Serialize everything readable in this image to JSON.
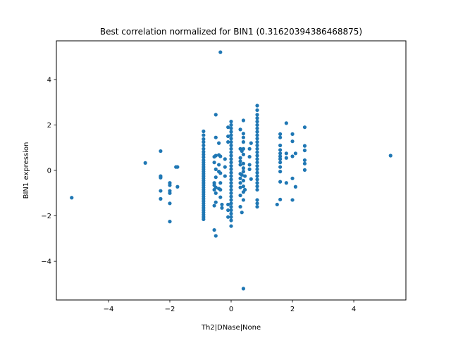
{
  "chart_data": {
    "type": "scatter",
    "title": "Best correlation normalized for BIN1 (0.31620394386468875)",
    "xlabel": "Th2|DNase|None",
    "ylabel": "BIN1 expression",
    "xlim": [
      -5.7,
      5.7
    ],
    "ylim": [
      -5.7,
      5.7
    ],
    "xticks": [
      -4,
      -2,
      0,
      2,
      4
    ],
    "yticks": [
      -4,
      -2,
      0,
      2,
      4
    ],
    "grid": false,
    "marker_color": "#1f77b4",
    "points": [
      [
        -5.2,
        -1.2
      ],
      [
        -2.8,
        0.33
      ],
      [
        5.2,
        0.65
      ],
      [
        -2.3,
        0.85
      ],
      [
        -2.3,
        -0.25
      ],
      [
        -2.3,
        -0.32
      ],
      [
        -2.3,
        -0.9
      ],
      [
        -2.3,
        -1.25
      ],
      [
        -2.0,
        -0.55
      ],
      [
        -2.0,
        -0.65
      ],
      [
        -2.0,
        -0.9
      ],
      [
        -2.0,
        -1.0
      ],
      [
        -2.0,
        -1.45
      ],
      [
        -2.0,
        -2.25
      ],
      [
        -1.8,
        0.15
      ],
      [
        -1.75,
        0.15
      ],
      [
        -1.75,
        -0.72
      ],
      [
        -0.9,
        1.72
      ],
      [
        -0.9,
        1.55
      ],
      [
        -0.9,
        1.38
      ],
      [
        -0.9,
        1.25
      ],
      [
        -0.9,
        1.1
      ],
      [
        -0.9,
        0.95
      ],
      [
        -0.9,
        0.82
      ],
      [
        -0.9,
        0.7
      ],
      [
        -0.9,
        0.58
      ],
      [
        -0.9,
        0.45
      ],
      [
        -0.9,
        0.35
      ],
      [
        -0.9,
        0.25
      ],
      [
        -0.9,
        0.15
      ],
      [
        -0.9,
        0.05
      ],
      [
        -0.9,
        -0.05
      ],
      [
        -0.9,
        -0.15
      ],
      [
        -0.9,
        -0.25
      ],
      [
        -0.9,
        -0.35
      ],
      [
        -0.9,
        -0.45
      ],
      [
        -0.9,
        -0.55
      ],
      [
        -0.9,
        -0.65
      ],
      [
        -0.9,
        -0.75
      ],
      [
        -0.9,
        -0.85
      ],
      [
        -0.9,
        -0.95
      ],
      [
        -0.9,
        -1.05
      ],
      [
        -0.9,
        -1.15
      ],
      [
        -0.9,
        -1.25
      ],
      [
        -0.9,
        -1.35
      ],
      [
        -0.9,
        -1.45
      ],
      [
        -0.9,
        -1.55
      ],
      [
        -0.9,
        -1.65
      ],
      [
        -0.9,
        -1.75
      ],
      [
        -0.9,
        -1.85
      ],
      [
        -0.9,
        -1.95
      ],
      [
        -0.9,
        -2.05
      ],
      [
        -0.9,
        -2.15
      ],
      [
        -0.55,
        0.6
      ],
      [
        -0.55,
        0.35
      ],
      [
        -0.55,
        -0.55
      ],
      [
        -0.55,
        -0.65
      ],
      [
        -0.55,
        -0.85
      ],
      [
        -0.55,
        -1.55
      ],
      [
        -0.55,
        -2.62
      ],
      [
        -0.5,
        2.45
      ],
      [
        -0.5,
        1.45
      ],
      [
        -0.5,
        0.65
      ],
      [
        -0.5,
        0.05
      ],
      [
        -0.5,
        -0.3
      ],
      [
        -0.5,
        -0.75
      ],
      [
        -0.5,
        -1.0
      ],
      [
        -0.5,
        -1.4
      ],
      [
        -0.5,
        -2.88
      ],
      [
        -0.35,
        5.2
      ],
      [
        -0.4,
        1.2
      ],
      [
        -0.4,
        0.68
      ],
      [
        -0.4,
        0.25
      ],
      [
        -0.4,
        -0.05
      ],
      [
        -0.4,
        -0.8
      ],
      [
        -0.35,
        0.62
      ],
      [
        -0.35,
        -0.12
      ],
      [
        -0.35,
        -0.55
      ],
      [
        -0.35,
        -0.85
      ],
      [
        -0.35,
        -1.18
      ],
      [
        -0.3,
        -1.5
      ],
      [
        -0.3,
        -1.65
      ],
      [
        -0.1,
        1.9
      ],
      [
        -0.1,
        1.5
      ],
      [
        -0.1,
        1.25
      ],
      [
        -0.1,
        -1.5
      ],
      [
        -0.1,
        -1.75
      ],
      [
        -0.1,
        -2.05
      ],
      [
        -0.2,
        0.5
      ],
      [
        -0.2,
        0.15
      ],
      [
        -0.2,
        -0.25
      ],
      [
        0.0,
        2.15
      ],
      [
        0.0,
        2.0
      ],
      [
        0.0,
        1.85
      ],
      [
        0.0,
        1.7
      ],
      [
        0.0,
        1.55
      ],
      [
        0.0,
        1.4
      ],
      [
        0.0,
        1.25
      ],
      [
        0.0,
        1.1
      ],
      [
        0.0,
        0.95
      ],
      [
        0.0,
        0.8
      ],
      [
        0.0,
        0.65
      ],
      [
        0.0,
        0.5
      ],
      [
        0.0,
        0.35
      ],
      [
        0.0,
        0.2
      ],
      [
        0.0,
        0.05
      ],
      [
        0.0,
        -0.1
      ],
      [
        0.0,
        -0.25
      ],
      [
        0.0,
        -0.4
      ],
      [
        0.0,
        -0.55
      ],
      [
        0.0,
        -0.7
      ],
      [
        0.0,
        -0.85
      ],
      [
        0.0,
        -1.0
      ],
      [
        0.0,
        -1.15
      ],
      [
        0.0,
        -1.3
      ],
      [
        0.0,
        -1.45
      ],
      [
        0.0,
        -1.6
      ],
      [
        0.0,
        -1.75
      ],
      [
        0.0,
        -1.9
      ],
      [
        0.0,
        -2.05
      ],
      [
        0.0,
        -2.2
      ],
      [
        0.0,
        -2.45
      ],
      [
        0.3,
        1.8
      ],
      [
        0.3,
        0.95
      ],
      [
        0.3,
        0.55
      ],
      [
        0.3,
        0.4
      ],
      [
        0.3,
        0.25
      ],
      [
        0.3,
        -0.15
      ],
      [
        0.3,
        -0.35
      ],
      [
        0.3,
        -0.55
      ],
      [
        0.3,
        -0.75
      ],
      [
        0.3,
        -1.1
      ],
      [
        0.3,
        -1.6
      ],
      [
        0.35,
        0.85
      ],
      [
        0.35,
        -0.2
      ],
      [
        0.35,
        -1.85
      ],
      [
        0.4,
        2.2
      ],
      [
        0.4,
        1.62
      ],
      [
        0.4,
        1.45
      ],
      [
        0.4,
        1.25
      ],
      [
        0.4,
        0.95
      ],
      [
        0.4,
        0.7
      ],
      [
        0.4,
        0.3
      ],
      [
        0.4,
        0.1
      ],
      [
        0.4,
        -0.05
      ],
      [
        0.4,
        -0.45
      ],
      [
        0.4,
        -0.7
      ],
      [
        0.4,
        -0.95
      ],
      [
        0.4,
        -1.3
      ],
      [
        0.4,
        -5.2
      ],
      [
        0.45,
        -0.25
      ],
      [
        0.45,
        -0.85
      ],
      [
        0.6,
        0.95
      ],
      [
        0.6,
        0.6
      ],
      [
        0.6,
        0.25
      ],
      [
        0.6,
        0.05
      ],
      [
        0.65,
        1.2
      ],
      [
        0.65,
        -0.38
      ],
      [
        0.85,
        2.85
      ],
      [
        0.85,
        2.65
      ],
      [
        0.85,
        2.45
      ],
      [
        0.85,
        2.3
      ],
      [
        0.85,
        2.15
      ],
      [
        0.85,
        2.0
      ],
      [
        0.85,
        1.85
      ],
      [
        0.85,
        1.7
      ],
      [
        0.85,
        1.55
      ],
      [
        0.85,
        1.4
      ],
      [
        0.85,
        1.25
      ],
      [
        0.85,
        1.1
      ],
      [
        0.85,
        0.95
      ],
      [
        0.85,
        0.8
      ],
      [
        0.85,
        0.65
      ],
      [
        0.85,
        0.5
      ],
      [
        0.85,
        0.35
      ],
      [
        0.85,
        0.2
      ],
      [
        0.85,
        0.05
      ],
      [
        0.85,
        -0.1
      ],
      [
        0.85,
        -0.25
      ],
      [
        0.85,
        -0.4
      ],
      [
        0.85,
        -0.55
      ],
      [
        0.85,
        -0.7
      ],
      [
        0.85,
        -0.85
      ],
      [
        0.85,
        -1.3
      ],
      [
        0.85,
        -1.45
      ],
      [
        0.85,
        -1.6
      ],
      [
        1.5,
        -1.5
      ],
      [
        1.6,
        1.6
      ],
      [
        1.6,
        1.45
      ],
      [
        1.6,
        1.1
      ],
      [
        1.6,
        0.9
      ],
      [
        1.6,
        0.75
      ],
      [
        1.6,
        0.62
      ],
      [
        1.6,
        0.5
      ],
      [
        1.6,
        0.35
      ],
      [
        1.6,
        0.15
      ],
      [
        1.6,
        -0.05
      ],
      [
        1.6,
        -0.5
      ],
      [
        1.6,
        -1.28
      ],
      [
        1.8,
        2.08
      ],
      [
        1.8,
        0.75
      ],
      [
        1.8,
        0.55
      ],
      [
        1.8,
        -0.55
      ],
      [
        2.0,
        1.6
      ],
      [
        2.0,
        1.28
      ],
      [
        2.0,
        0.62
      ],
      [
        2.0,
        -0.35
      ],
      [
        2.0,
        -1.3
      ],
      [
        2.1,
        -0.72
      ],
      [
        2.1,
        0.75
      ],
      [
        2.4,
        1.9
      ],
      [
        2.4,
        1.08
      ],
      [
        2.4,
        0.88
      ],
      [
        2.4,
        0.45
      ],
      [
        2.4,
        0.3
      ],
      [
        2.4,
        0.02
      ]
    ]
  }
}
